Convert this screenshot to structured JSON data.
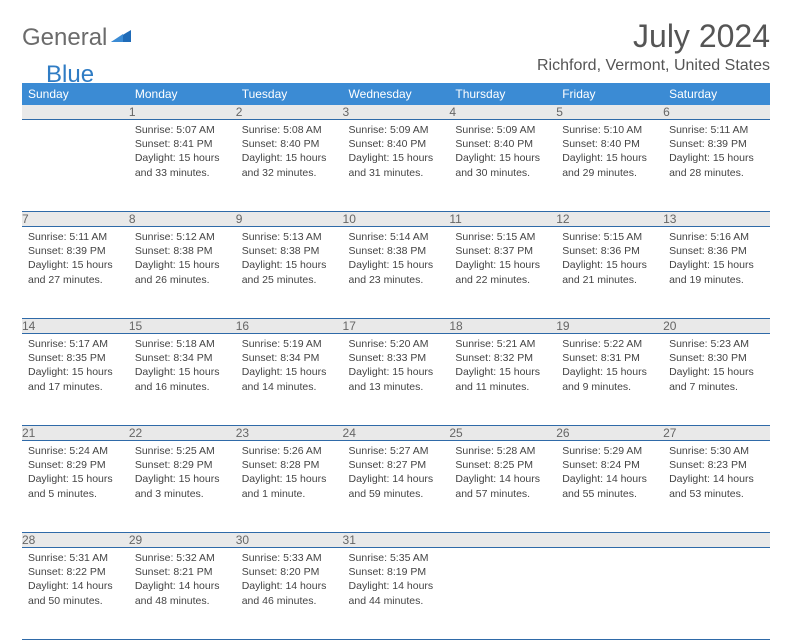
{
  "logo": {
    "part1": "General",
    "part2": "Blue"
  },
  "title": "July 2024",
  "location": "Richford, Vermont, United States",
  "colors": {
    "header_bg": "#3b8bd4",
    "header_text": "#ffffff",
    "daynum_bg": "#e9e9e9",
    "rule": "#2f6aa8",
    "logo_gray": "#6b6b6b",
    "logo_blue": "#2f7cc4",
    "title_color": "#555555",
    "body_text": "#444444"
  },
  "weekdays": [
    "Sunday",
    "Monday",
    "Tuesday",
    "Wednesday",
    "Thursday",
    "Friday",
    "Saturday"
  ],
  "start_offset": 1,
  "days": [
    {
      "n": 1,
      "sunrise": "5:07 AM",
      "sunset": "8:41 PM",
      "daylight": "15 hours and 33 minutes."
    },
    {
      "n": 2,
      "sunrise": "5:08 AM",
      "sunset": "8:40 PM",
      "daylight": "15 hours and 32 minutes."
    },
    {
      "n": 3,
      "sunrise": "5:09 AM",
      "sunset": "8:40 PM",
      "daylight": "15 hours and 31 minutes."
    },
    {
      "n": 4,
      "sunrise": "5:09 AM",
      "sunset": "8:40 PM",
      "daylight": "15 hours and 30 minutes."
    },
    {
      "n": 5,
      "sunrise": "5:10 AM",
      "sunset": "8:40 PM",
      "daylight": "15 hours and 29 minutes."
    },
    {
      "n": 6,
      "sunrise": "5:11 AM",
      "sunset": "8:39 PM",
      "daylight": "15 hours and 28 minutes."
    },
    {
      "n": 7,
      "sunrise": "5:11 AM",
      "sunset": "8:39 PM",
      "daylight": "15 hours and 27 minutes."
    },
    {
      "n": 8,
      "sunrise": "5:12 AM",
      "sunset": "8:38 PM",
      "daylight": "15 hours and 26 minutes."
    },
    {
      "n": 9,
      "sunrise": "5:13 AM",
      "sunset": "8:38 PM",
      "daylight": "15 hours and 25 minutes."
    },
    {
      "n": 10,
      "sunrise": "5:14 AM",
      "sunset": "8:38 PM",
      "daylight": "15 hours and 23 minutes."
    },
    {
      "n": 11,
      "sunrise": "5:15 AM",
      "sunset": "8:37 PM",
      "daylight": "15 hours and 22 minutes."
    },
    {
      "n": 12,
      "sunrise": "5:15 AM",
      "sunset": "8:36 PM",
      "daylight": "15 hours and 21 minutes."
    },
    {
      "n": 13,
      "sunrise": "5:16 AM",
      "sunset": "8:36 PM",
      "daylight": "15 hours and 19 minutes."
    },
    {
      "n": 14,
      "sunrise": "5:17 AM",
      "sunset": "8:35 PM",
      "daylight": "15 hours and 17 minutes."
    },
    {
      "n": 15,
      "sunrise": "5:18 AM",
      "sunset": "8:34 PM",
      "daylight": "15 hours and 16 minutes."
    },
    {
      "n": 16,
      "sunrise": "5:19 AM",
      "sunset": "8:34 PM",
      "daylight": "15 hours and 14 minutes."
    },
    {
      "n": 17,
      "sunrise": "5:20 AM",
      "sunset": "8:33 PM",
      "daylight": "15 hours and 13 minutes."
    },
    {
      "n": 18,
      "sunrise": "5:21 AM",
      "sunset": "8:32 PM",
      "daylight": "15 hours and 11 minutes."
    },
    {
      "n": 19,
      "sunrise": "5:22 AM",
      "sunset": "8:31 PM",
      "daylight": "15 hours and 9 minutes."
    },
    {
      "n": 20,
      "sunrise": "5:23 AM",
      "sunset": "8:30 PM",
      "daylight": "15 hours and 7 minutes."
    },
    {
      "n": 21,
      "sunrise": "5:24 AM",
      "sunset": "8:29 PM",
      "daylight": "15 hours and 5 minutes."
    },
    {
      "n": 22,
      "sunrise": "5:25 AM",
      "sunset": "8:29 PM",
      "daylight": "15 hours and 3 minutes."
    },
    {
      "n": 23,
      "sunrise": "5:26 AM",
      "sunset": "8:28 PM",
      "daylight": "15 hours and 1 minute."
    },
    {
      "n": 24,
      "sunrise": "5:27 AM",
      "sunset": "8:27 PM",
      "daylight": "14 hours and 59 minutes."
    },
    {
      "n": 25,
      "sunrise": "5:28 AM",
      "sunset": "8:25 PM",
      "daylight": "14 hours and 57 minutes."
    },
    {
      "n": 26,
      "sunrise": "5:29 AM",
      "sunset": "8:24 PM",
      "daylight": "14 hours and 55 minutes."
    },
    {
      "n": 27,
      "sunrise": "5:30 AM",
      "sunset": "8:23 PM",
      "daylight": "14 hours and 53 minutes."
    },
    {
      "n": 28,
      "sunrise": "5:31 AM",
      "sunset": "8:22 PM",
      "daylight": "14 hours and 50 minutes."
    },
    {
      "n": 29,
      "sunrise": "5:32 AM",
      "sunset": "8:21 PM",
      "daylight": "14 hours and 48 minutes."
    },
    {
      "n": 30,
      "sunrise": "5:33 AM",
      "sunset": "8:20 PM",
      "daylight": "14 hours and 46 minutes."
    },
    {
      "n": 31,
      "sunrise": "5:35 AM",
      "sunset": "8:19 PM",
      "daylight": "14 hours and 44 minutes."
    }
  ],
  "labels": {
    "sunrise": "Sunrise:",
    "sunset": "Sunset:",
    "daylight": "Daylight:"
  }
}
